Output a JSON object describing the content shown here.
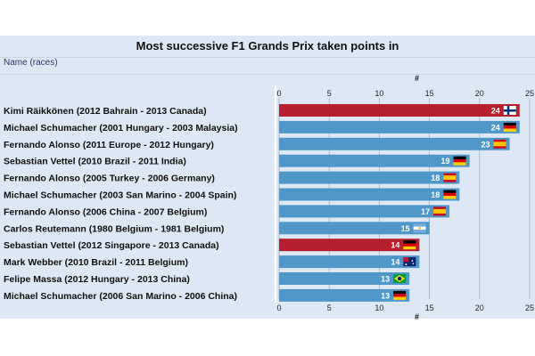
{
  "chart_data": {
    "type": "bar",
    "orientation": "horizontal",
    "title": "Most successive F1 Grands Prix taken points in",
    "category_header": "Name (races)",
    "xlabel": "#",
    "xlim": [
      0,
      25
    ],
    "xticks": [
      0,
      5,
      10,
      15,
      20,
      25
    ],
    "grid": true,
    "categories": [
      "Kimi Räikkönen (2012 Bahrain - 2013 Canada)",
      "Michael Schumacher (2001 Hungary - 2003 Malaysia)",
      "Fernando Alonso (2011 Europe - 2012 Hungary)",
      "Sebastian Vettel (2010 Brazil - 2011 India)",
      "Fernando Alonso (2005 Turkey - 2006 Germany)",
      "Michael Schumacher (2003 San Marino - 2004 Spain)",
      "Fernando Alonso (2006 China - 2007 Belgium)",
      "Carlos Reutemann (1980 Belgium - 1981 Belgium)",
      "Sebastian Vettel (2012 Singapore - 2013 Canada)",
      "Mark Webber (2010 Brazil - 2011 Belgium)",
      "Felipe Massa (2012 Hungary - 2013 China)",
      "Michael Schumacher (2006 San Marino - 2006 China)"
    ],
    "values": [
      24,
      24,
      23,
      19,
      18,
      18,
      17,
      15,
      14,
      14,
      13,
      13
    ],
    "bar_colors": [
      "#b81f2e",
      "#4f97c9",
      "#4f97c9",
      "#4f97c9",
      "#4f97c9",
      "#4f97c9",
      "#4f97c9",
      "#4f97c9",
      "#b81f2e",
      "#4f97c9",
      "#4f97c9",
      "#4f97c9"
    ],
    "flags": [
      "finland-flag-icon",
      "germany-flag-icon",
      "spain-flag-icon",
      "germany-flag-icon",
      "spain-flag-icon",
      "germany-flag-icon",
      "spain-flag-icon",
      "argentina-flag-icon",
      "germany-flag-icon",
      "australia-flag-icon",
      "brazil-flag-icon",
      "germany-flag-icon"
    ]
  },
  "colors": {
    "highlight_bar": "#b81f2e",
    "default_bar": "#4f97c9",
    "panel_background": "#dde8f4",
    "grid": "#9fb3cc"
  }
}
